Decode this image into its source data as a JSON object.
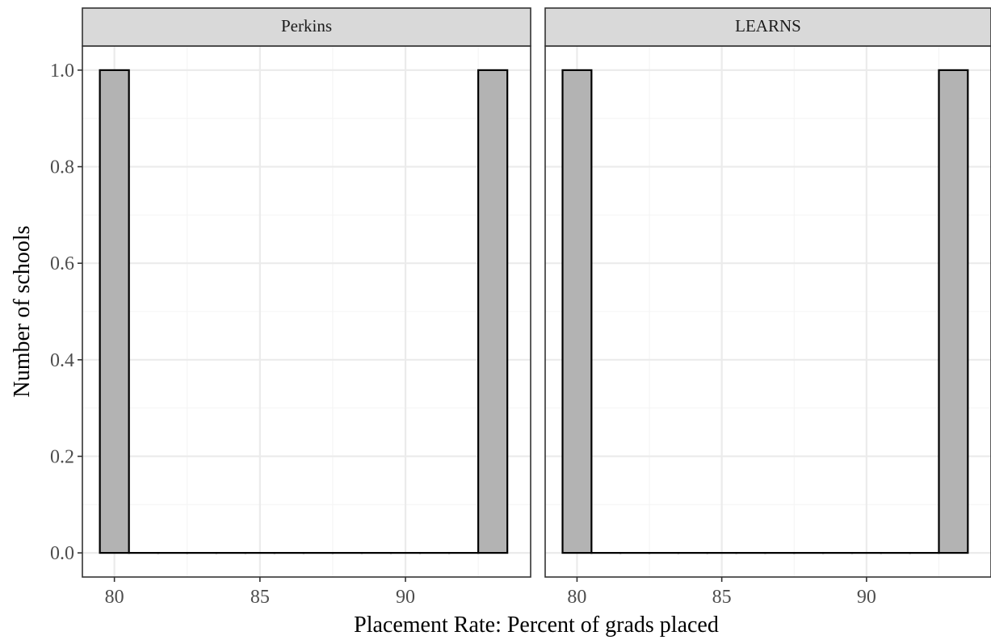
{
  "chart_data": {
    "type": "bar",
    "xlabel": "Placement Rate: Percent of grads placed",
    "ylabel": "Number of schools",
    "xlim": [
      78.9,
      94.3
    ],
    "ylim": [
      -0.05,
      1.05
    ],
    "x_ticks": [
      80,
      85,
      90
    ],
    "y_ticks": [
      0.0,
      0.2,
      0.4,
      0.6,
      0.8,
      1.0
    ],
    "y_tick_labels": [
      "0.0",
      "0.2",
      "0.4",
      "0.6",
      "0.8",
      "1.0"
    ],
    "bin_width": 1,
    "grid": true,
    "legend": "none",
    "facets": [
      {
        "label": "Perkins",
        "bins": [
          {
            "x": 80,
            "count": 1
          },
          {
            "x": 81,
            "count": 0
          },
          {
            "x": 82,
            "count": 0
          },
          {
            "x": 83,
            "count": 0
          },
          {
            "x": 84,
            "count": 0
          },
          {
            "x": 85,
            "count": 0
          },
          {
            "x": 86,
            "count": 0
          },
          {
            "x": 87,
            "count": 0
          },
          {
            "x": 88,
            "count": 0
          },
          {
            "x": 89,
            "count": 0
          },
          {
            "x": 90,
            "count": 0
          },
          {
            "x": 91,
            "count": 0
          },
          {
            "x": 92,
            "count": 0
          },
          {
            "x": 93,
            "count": 1
          }
        ]
      },
      {
        "label": "LEARNS",
        "bins": [
          {
            "x": 80,
            "count": 1
          },
          {
            "x": 81,
            "count": 0
          },
          {
            "x": 82,
            "count": 0
          },
          {
            "x": 83,
            "count": 0
          },
          {
            "x": 84,
            "count": 0
          },
          {
            "x": 85,
            "count": 0
          },
          {
            "x": 86,
            "count": 0
          },
          {
            "x": 87,
            "count": 0
          },
          {
            "x": 88,
            "count": 0
          },
          {
            "x": 89,
            "count": 0
          },
          {
            "x": 90,
            "count": 0
          },
          {
            "x": 91,
            "count": 0
          },
          {
            "x": 92,
            "count": 0
          },
          {
            "x": 93,
            "count": 1
          }
        ]
      }
    ],
    "colors": {
      "bar_fill": "#b3b3b3",
      "bar_outline": "#000000",
      "strip_fill": "#d9d9d9"
    }
  }
}
